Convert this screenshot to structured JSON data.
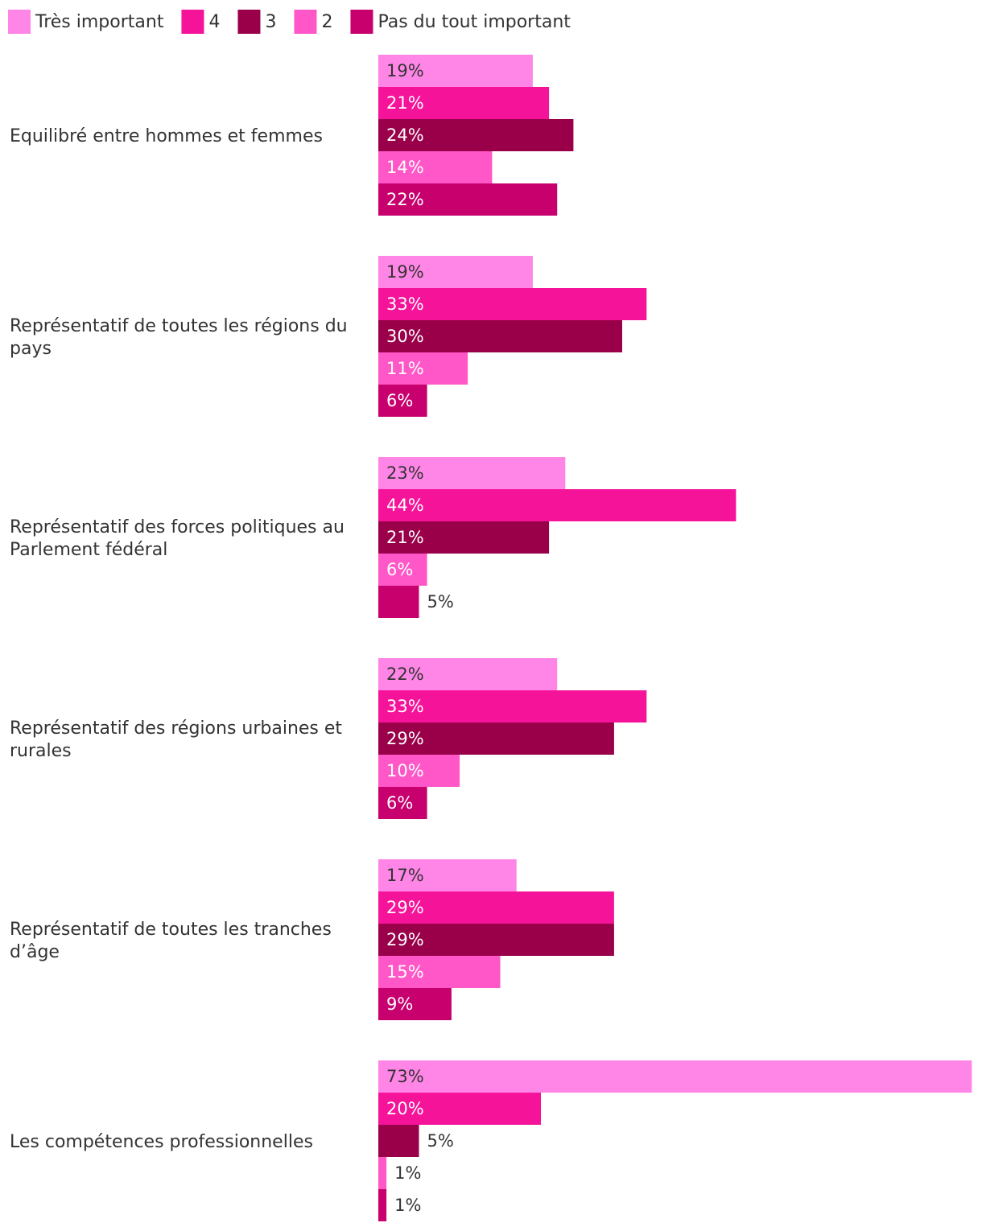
{
  "chart_data": {
    "type": "bar",
    "orientation": "horizontal",
    "legend_position": "top-left",
    "grid": false,
    "xlim": [
      0,
      73
    ],
    "categories": [
      "Equilibré entre hommes et femmes",
      "Représentatif de toutes les régions du pays",
      "Représentatif des forces politiques au Parlement fédéral",
      "Représentatif des régions urbaines et rurales",
      "Représentatif de toutes les tranches d’âge",
      "Les compétences professionnelles"
    ],
    "series": [
      {
        "name": "Très important",
        "color": "#FF85E6",
        "values": [
          19,
          19,
          23,
          22,
          17,
          73
        ],
        "labels": [
          "19%",
          "19%",
          "23%",
          "22%",
          "17%",
          "73%"
        ]
      },
      {
        "name": "4",
        "color": "#F5139A",
        "values": [
          21,
          33,
          44,
          33,
          29,
          20
        ],
        "labels": [
          "21%",
          "33%",
          "44%",
          "33%",
          "29%",
          "20%"
        ]
      },
      {
        "name": "3",
        "color": "#990049",
        "values": [
          24,
          30,
          21,
          29,
          29,
          5
        ],
        "labels": [
          "24%",
          "30%",
          "21%",
          "29%",
          "29%",
          "5%"
        ]
      },
      {
        "name": "2",
        "color": "#FF57C7",
        "values": [
          14,
          11,
          6,
          10,
          15,
          1
        ],
        "labels": [
          "14%",
          "11%",
          "6%",
          "10%",
          "15%",
          "1%"
        ]
      },
      {
        "name": "Pas du tout important",
        "color": "#C7006E",
        "values": [
          22,
          6,
          5,
          6,
          9,
          1
        ],
        "labels": [
          "22%",
          "6%",
          "5%",
          "6%",
          "9%",
          "1%"
        ]
      }
    ]
  }
}
